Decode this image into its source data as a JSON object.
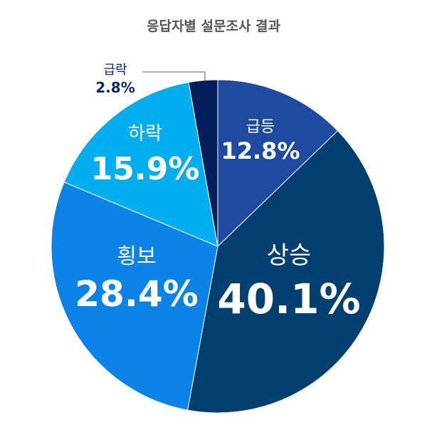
{
  "chart_data": {
    "type": "pie",
    "title": "응답자별 설문조사 결과",
    "start": "top",
    "direction": "clockwise",
    "slices": [
      {
        "label": "급등",
        "value": 12.8,
        "display": "12.8%",
        "color": "#1e4aa0"
      },
      {
        "label": "상승",
        "value": 40.1,
        "display": "40.1%",
        "color": "#003f6f"
      },
      {
        "label": "횡보",
        "value": 28.4,
        "display": "28.4%",
        "color": "#0a82e6"
      },
      {
        "label": "하락",
        "value": 15.9,
        "display": "15.9%",
        "color": "#00aeef"
      },
      {
        "label": "급락",
        "value": 2.8,
        "display": "2.8%",
        "color": "#021f5c",
        "label_outside": true
      }
    ]
  }
}
